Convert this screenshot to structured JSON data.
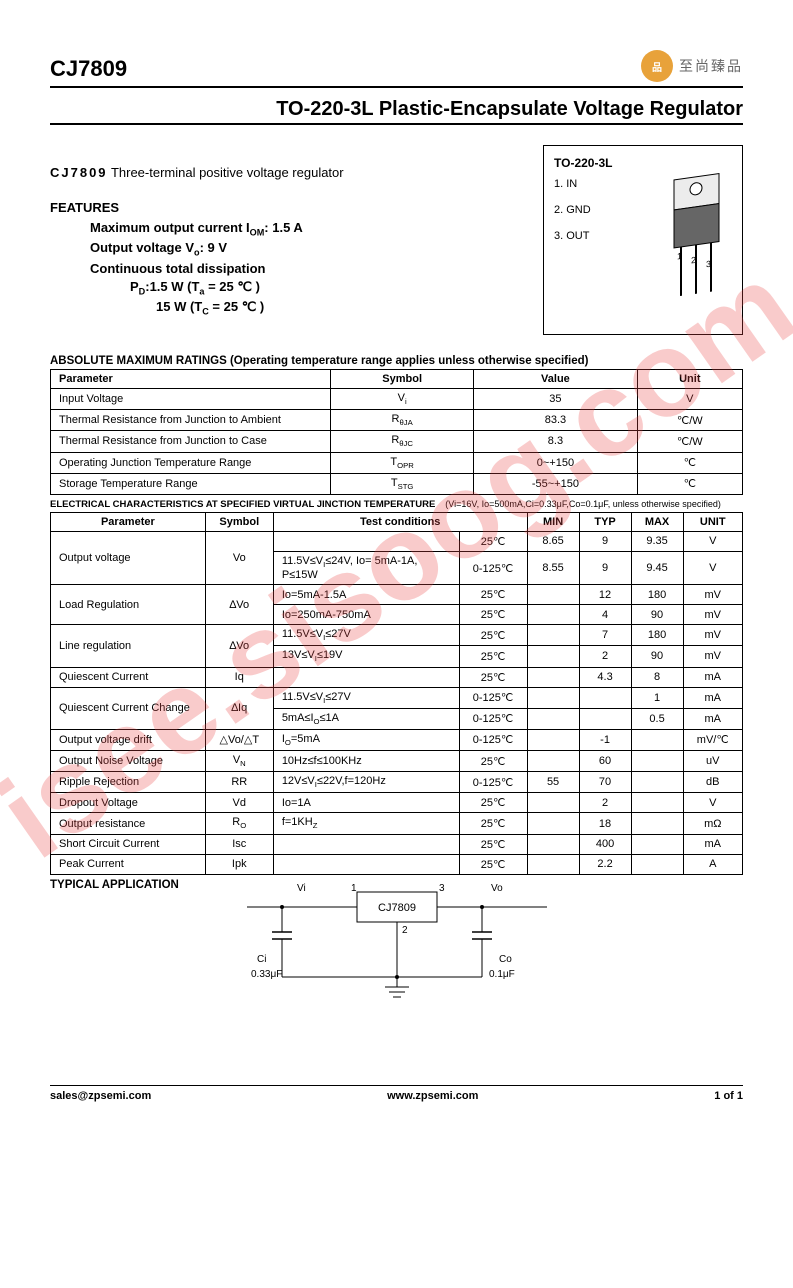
{
  "header": {
    "part_number": "CJ7809",
    "logo_text": "至尚臻品",
    "logo_color": "#e8a23a"
  },
  "title": "TO-220-3L Plastic-Encapsulate Voltage Regulator",
  "description": {
    "pn": "CJ7809",
    "text": "Three-terminal positive voltage regulator"
  },
  "features": {
    "heading": "FEATURES",
    "lines": [
      "Maximum output current I<sub>OM</sub>: 1.5 A",
      "Output voltage V<sub>o</sub>: 9 V",
      "Continuous total dissipation",
      "P<sub>D</sub>:1.5 W (T<sub>a</sub> = 25 ℃ )",
      "15 W (T<sub>C</sub> = 25 ℃ )"
    ]
  },
  "package": {
    "label": "TO-220-3L",
    "pins": [
      "1. IN",
      "2. GND",
      "3. OUT"
    ]
  },
  "abs_max": {
    "heading": "ABSOLUTE MAXIMUM RATINGS (Operating temperature range applies unless otherwise specified)",
    "columns": [
      "Parameter",
      "Symbol",
      "Value",
      "Unit"
    ],
    "rows": [
      [
        "Input Voltage",
        "V<sub>i</sub>",
        "35",
        "V"
      ],
      [
        "Thermal  Resistance from Junction to Ambient",
        "R<sub>θJA</sub>",
        "83.3",
        "℃/W"
      ],
      [
        "Thermal Resistance from Junction to Case",
        "R<sub>θJC</sub>",
        "8.3",
        "℃/W"
      ],
      [
        "Operating Junction Temperature Range",
        "T<sub>OPR</sub>",
        "0~+150",
        "℃"
      ],
      [
        " Storage Temperature Range",
        "T<sub>STG</sub>",
        "-55~+150",
        "℃"
      ]
    ]
  },
  "elec": {
    "heading": "ELECTRICAL CHARACTERISTICS AT SPECIFIED VIRTUAL JINCTION TEMPERATURE",
    "conditions_note": "(Vi=16V, Io=500mA,Ci=0.33μF,Co=0.1μF, unless otherwise specified)",
    "columns": [
      "Parameter",
      "Symbol",
      "Test conditions",
      "",
      "MIN",
      "TYP",
      "MAX",
      "UNIT"
    ],
    "rows": [
      {
        "param": "Output voltage",
        "sym": "Vo",
        "cond": "",
        "temp": "25℃",
        "min": "8.65",
        "typ": "9",
        "max": "9.35",
        "unit": "V",
        "rowspan_p": 2,
        "rowspan_s": 2
      },
      {
        "cond": "11.5V≤V<sub>I</sub>≤24V, Io= 5mA-1A, P≤15W",
        "temp": "0-125℃",
        "min": "8.55",
        "typ": "9",
        "max": "9.45",
        "unit": "V"
      },
      {
        "param": "Load Regulation",
        "sym": "∆Vo",
        "cond": "Io=5mA-1.5A",
        "temp": "25℃",
        "min": "",
        "typ": "12",
        "max": "180",
        "unit": "mV",
        "rowspan_p": 2,
        "rowspan_s": 2
      },
      {
        "cond": "Io=250mA-750mA",
        "temp": "25℃",
        "min": "",
        "typ": "4",
        "max": "90",
        "unit": "mV"
      },
      {
        "param": "Line regulation",
        "sym": "∆Vo",
        "cond": "11.5V≤V<sub>I</sub>≤27V",
        "temp": "25℃",
        "min": "",
        "typ": "7",
        "max": "180",
        "unit": "mV",
        "rowspan_p": 2,
        "rowspan_s": 2
      },
      {
        "cond": "13V≤V<sub>I</sub>≤19V",
        "temp": "25℃",
        "min": "",
        "typ": "2",
        "max": "90",
        "unit": "mV"
      },
      {
        "param": "Quiescent Current",
        "sym": "Iq",
        "cond": "",
        "temp": "25℃",
        "min": "",
        "typ": "4.3",
        "max": "8",
        "unit": "mA"
      },
      {
        "param": "Quiescent Current Change",
        "sym": "∆Iq",
        "cond": "11.5V≤V<sub>I</sub>≤27V",
        "temp": "0-125℃",
        "min": "",
        "typ": "",
        "max": "1",
        "unit": "mA",
        "rowspan_p": 2,
        "rowspan_s": 2
      },
      {
        "cond": "5mA≤I<sub>O</sub>≤1A",
        "temp": "0-125℃",
        "min": "",
        "typ": "",
        "max": "0.5",
        "unit": "mA"
      },
      {
        "param": "Output voltage drift",
        "sym": "△Vo/△T",
        "cond": "I<sub>O</sub>=5mA",
        "temp": "0-125℃",
        "min": "",
        "typ": "-1",
        "max": "",
        "unit": "mV/℃"
      },
      {
        "param": "Output Noise Voltage",
        "sym": "V<sub>N</sub>",
        "cond": "10Hz≤f≤100KHz",
        "temp": "25℃",
        "min": "",
        "typ": "60",
        "max": "",
        "unit": "uV"
      },
      {
        "param": "Ripple Rejection",
        "sym": "RR",
        "cond": "12V≤V<sub>I</sub>≤22V,f=120Hz",
        "temp": "0-125℃",
        "min": "55",
        "typ": "70",
        "max": "",
        "unit": "dB"
      },
      {
        "param": "Dropout Voltage",
        "sym": "Vd",
        "cond": "Io=1A",
        "temp": "25℃",
        "min": "",
        "typ": "2",
        "max": "",
        "unit": "V"
      },
      {
        "param": "Output resistance",
        "sym": "R<sub>O</sub>",
        "cond": "f=1KH<sub>Z</sub>",
        "temp": "25℃",
        "min": "",
        "typ": "18",
        "max": "",
        "unit": "mΩ"
      },
      {
        "param": "Short Circuit Current",
        "sym": "Isc",
        "cond": "",
        "temp": "25℃",
        "min": "",
        "typ": "400",
        "max": "",
        "unit": "mA"
      },
      {
        "param": "Peak Current",
        "sym": "Ipk",
        "cond": "",
        "temp": "25℃",
        "min": "",
        "typ": "2.2",
        "max": "",
        "unit": "A"
      }
    ]
  },
  "typical_app": {
    "heading": "TYPICAL APPLICATION",
    "labels": {
      "vi": "Vi",
      "vo": "Vo",
      "p1": "1",
      "p2": "2",
      "p3": "3",
      "chip": "CJ7809",
      "ci_name": "Ci",
      "ci_val": "0.33μF",
      "co_name": "Co",
      "co_val": "0.1μF"
    }
  },
  "footer": {
    "email": "sales@zpsemi.com",
    "url": "www.zpsemi.com",
    "page": "1 of 1"
  },
  "watermark": "isee.sisoog.com"
}
